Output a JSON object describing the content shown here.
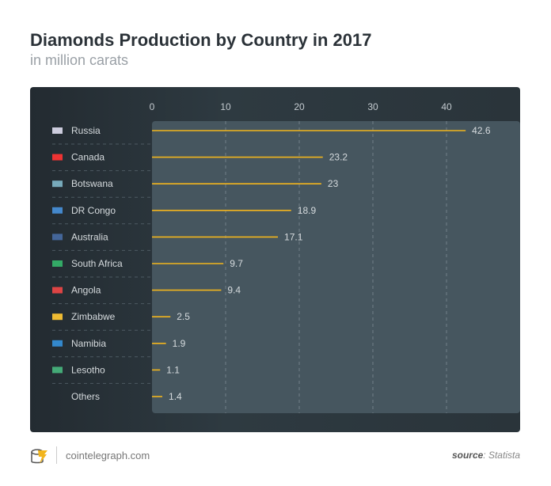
{
  "chart_data": {
    "type": "bar",
    "title": "Diamonds Production by Country in 2017",
    "subtitle": "in million carats",
    "categories": [
      "Russia",
      "Canada",
      "Botswana",
      "DR Congo",
      "Australia",
      "South Africa",
      "Angola",
      "Zimbabwe",
      "Namibia",
      "Lesotho",
      "Others"
    ],
    "values": [
      42.6,
      23.2,
      23,
      18.9,
      17.1,
      9.7,
      9.4,
      2.5,
      1.9,
      1.1,
      1.4
    ],
    "value_labels": [
      "42.6",
      "23.2",
      "23",
      "18.9",
      "17.1",
      "9.7",
      "9.4",
      "2.5",
      "1.9",
      "1.1",
      "1.4"
    ],
    "xticks": [
      "0",
      "10",
      "20",
      "30",
      "40"
    ],
    "xlim": [
      0,
      50
    ],
    "grid": true,
    "bar_color": "#f2b51d"
  },
  "footer": {
    "site": "cointelegraph.com",
    "source_label": "source",
    "source_value": "Statista"
  }
}
